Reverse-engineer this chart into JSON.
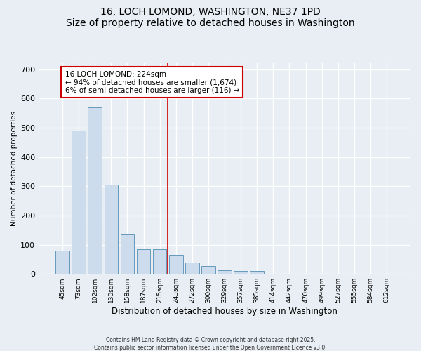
{
  "title1": "16, LOCH LOMOND, WASHINGTON, NE37 1PD",
  "title2": "Size of property relative to detached houses in Washington",
  "xlabel": "Distribution of detached houses by size in Washington",
  "ylabel": "Number of detached properties",
  "categories": [
    "45sqm",
    "73sqm",
    "102sqm",
    "130sqm",
    "158sqm",
    "187sqm",
    "215sqm",
    "243sqm",
    "272sqm",
    "300sqm",
    "329sqm",
    "357sqm",
    "385sqm",
    "414sqm",
    "442sqm",
    "470sqm",
    "499sqm",
    "527sqm",
    "555sqm",
    "584sqm",
    "612sqm"
  ],
  "values": [
    80,
    490,
    570,
    305,
    135,
    85,
    85,
    65,
    40,
    28,
    12,
    10,
    10,
    0,
    0,
    0,
    0,
    0,
    0,
    0,
    0
  ],
  "bar_color": "#ccdcec",
  "bar_edge_color": "#6699bb",
  "vline_x": 6.5,
  "vline_color": "#cc0000",
  "annotation_text": "16 LOCH LOMOND: 224sqm\n← 94% of detached houses are smaller (1,674)\n6% of semi-detached houses are larger (116) →",
  "annotation_box_color": "white",
  "annotation_box_edge": "#cc0000",
  "ylim": [
    0,
    720
  ],
  "yticks": [
    0,
    100,
    200,
    300,
    400,
    500,
    600,
    700
  ],
  "footer1": "Contains HM Land Registry data © Crown copyright and database right 2025.",
  "footer2": "Contains public sector information licensed under the Open Government Licence v3.0.",
  "bg_color": "#e8eef4",
  "plot_bg_color": "#e8eef4",
  "grid_color": "#ffffff",
  "title_fontsize": 10,
  "annot_fontsize": 7.5
}
